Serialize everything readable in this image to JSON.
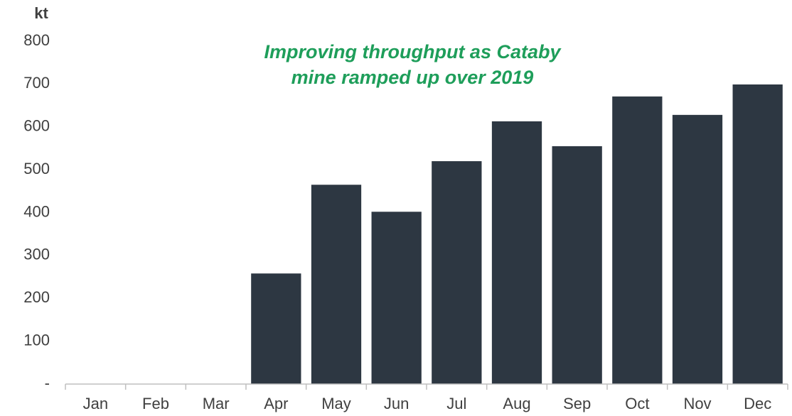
{
  "chart_data": {
    "type": "bar",
    "y_axis_label": "kt",
    "annotation": [
      "Improving throughput as Cataby",
      "mine ramped up over 2019"
    ],
    "categories": [
      "Jan",
      "Feb",
      "Mar",
      "Apr",
      "May",
      "Jun",
      "Jul",
      "Aug",
      "Sep",
      "Oct",
      "Nov",
      "Dec"
    ],
    "values": [
      0,
      0,
      0,
      258,
      465,
      402,
      520,
      613,
      555,
      671,
      628,
      699
    ],
    "color": "#2d3742",
    "ylim": [
      0,
      800
    ],
    "yticks": [
      {
        "value": 0,
        "label": "-"
      },
      100,
      200,
      300,
      400,
      500,
      600,
      700,
      800
    ],
    "grid": false
  }
}
